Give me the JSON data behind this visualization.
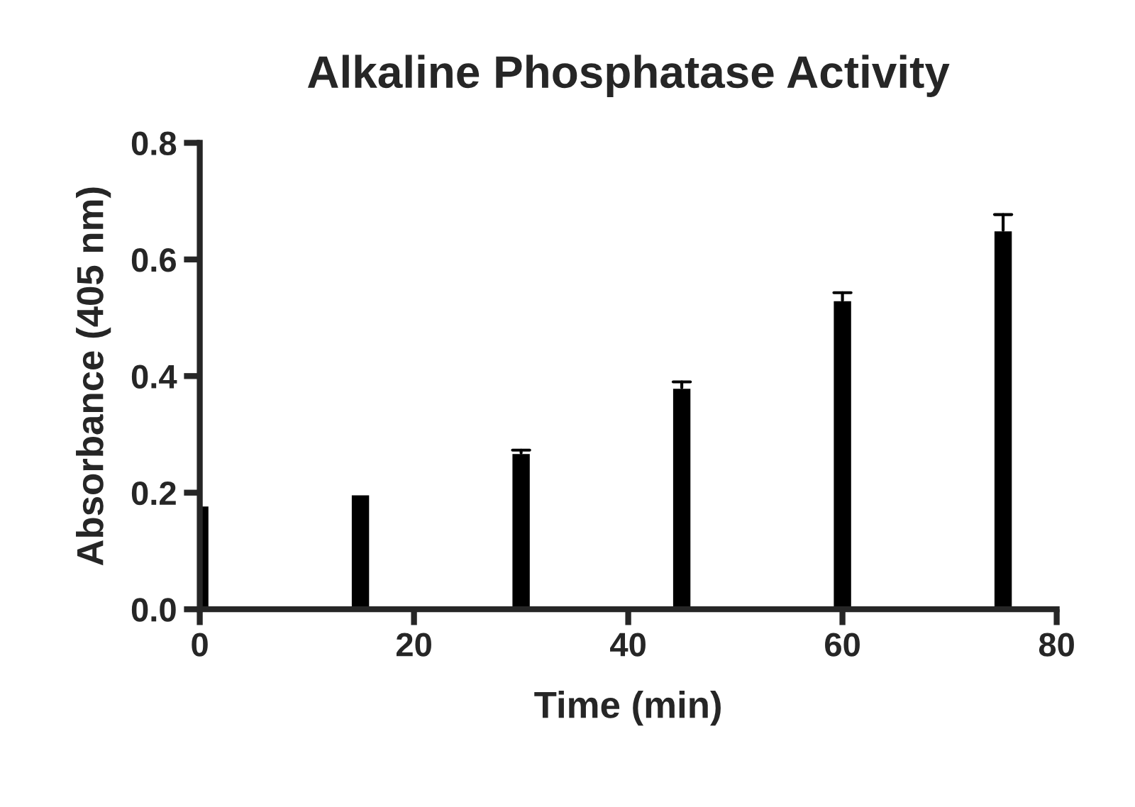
{
  "chart_data": {
    "type": "bar",
    "title": "Alkaline Phosphatase Activity",
    "xlabel": "Time (min)",
    "ylabel": "Absorbance (405 nm)",
    "x": [
      0,
      15,
      30,
      45,
      60,
      75
    ],
    "values": [
      0.178,
      0.197,
      0.268,
      0.38,
      0.53,
      0.65
    ],
    "errors": [
      null,
      null,
      [
        0.268,
        0.273
      ],
      [
        0.38,
        0.39
      ],
      [
        0.53,
        0.543
      ],
      [
        0.65,
        0.677
      ]
    ],
    "color": "#000000",
    "xlim": [
      0,
      80
    ],
    "xticks": [
      0,
      20,
      40,
      60,
      80
    ],
    "ylim": [
      0,
      0.8
    ],
    "yticks": [
      {
        "value": 0,
        "label": "0.0"
      },
      {
        "value": 0.2,
        "label": "0.2"
      },
      {
        "value": 0.4,
        "label": "0.4"
      },
      {
        "value": 0.6,
        "label": "0.6"
      },
      {
        "value": 0.8,
        "label": "0.8"
      }
    ],
    "grid": false
  }
}
